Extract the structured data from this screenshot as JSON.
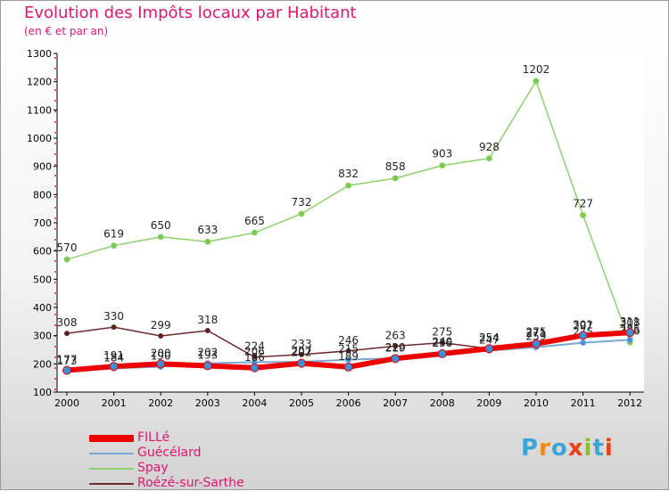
{
  "header": {
    "title": "Evolution des Impôts locaux par Habitant",
    "subtitle": "(en € et par an)"
  },
  "logo": {
    "letters": [
      "P",
      "r",
      "o",
      "x",
      "i",
      "t",
      "i"
    ],
    "colors": [
      "#3aa6d8",
      "#f08a1c",
      "#3aa6d8",
      "#e8421a",
      "#8bbf2a",
      "#3aa6d8",
      "#e8421a"
    ]
  },
  "chart_data": {
    "type": "line",
    "title": "Evolution des Impôts locaux par Habitant",
    "subtitle": "(en € et par an)",
    "xlabel": "",
    "ylabel": "",
    "categories": [
      "2000",
      "2001",
      "2002",
      "2003",
      "2004",
      "2005",
      "2006",
      "2007",
      "2008",
      "2009",
      "2010",
      "2011",
      "2012"
    ],
    "yticks": [
      "100",
      "200",
      "300",
      "400",
      "500",
      "600",
      "700",
      "800",
      "900",
      "1000",
      "1100",
      "1200",
      "1300"
    ],
    "ylim": [
      100,
      1300
    ],
    "grid": false,
    "legend_position": "bottom-left",
    "series": [
      {
        "name": "Roézé-sur-Sarthe",
        "color": "#6e2a2a",
        "values": [
          308,
          330,
          299,
          318,
          224,
          233,
          246,
          263,
          275,
          254,
          275,
          297,
          308
        ],
        "labels": [
          "308",
          "330",
          "299",
          "318",
          "224",
          "233",
          "246",
          "263",
          "275",
          "254",
          "275",
          "297",
          "308"
        ]
      },
      {
        "name": "Spay",
        "color": "#8dd36b",
        "values": [
          570,
          619,
          650,
          633,
          665,
          732,
          832,
          858,
          903,
          928,
          1202,
          727,
          276
        ],
        "labels": [
          "570",
          "619",
          "650",
          "633",
          "665",
          "732",
          "832",
          "858",
          "903",
          "928",
          "1202",
          "727",
          "276"
        ]
      },
      {
        "name": "Guécélard",
        "color": "#7aa6d6",
        "values": [
          173,
          184,
          190,
          202,
          206,
          207,
          215,
          220,
          240,
          247,
          259,
          275,
          285
        ],
        "labels": [
          "173",
          "184",
          "190",
          "202",
          "206",
          "207",
          "215",
          "220",
          "240",
          "247",
          "259",
          "275",
          "285"
        ]
      },
      {
        "name": "FILLé",
        "color": "#ee0000",
        "values": [
          177,
          191,
          200,
          193,
          186,
          202,
          189,
          219,
          236,
          254,
          271,
          301,
          311
        ],
        "labels": [
          "177",
          "191",
          "200",
          "193",
          "186",
          "202",
          "189",
          "219",
          "236",
          "254",
          "271",
          "301",
          "311"
        ]
      }
    ]
  },
  "legend": [
    {
      "label": "FILLé",
      "color": "#ee0000"
    },
    {
      "label": "Guécélard",
      "color": "#7aa6d6"
    },
    {
      "label": "Spay",
      "color": "#8dd36b"
    },
    {
      "label": "Roézé-sur-Sarthe",
      "color": "#6e2a2a"
    }
  ]
}
